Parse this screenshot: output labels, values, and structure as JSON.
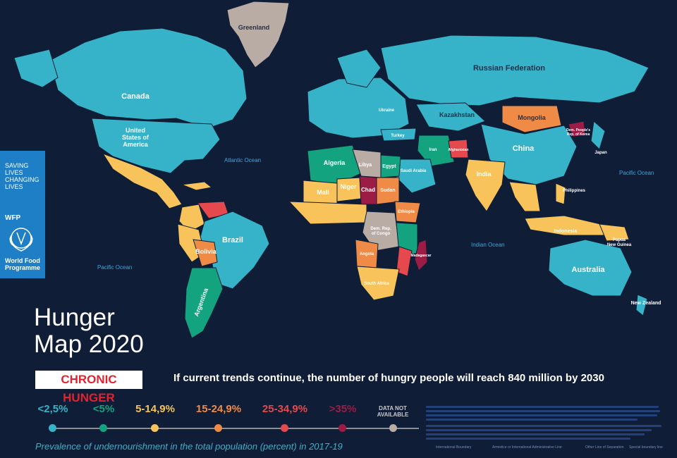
{
  "title": {
    "line1": "Hunger",
    "line2": "Map 2020"
  },
  "badge": "CHRONIC HUNGER",
  "headline": "If current trends continue, the number of hungry people will reach 840 million by 2030",
  "wfp": {
    "slogan": [
      "SAVING",
      "LIVES",
      "CHANGING",
      "LIVES"
    ],
    "acronym": "WFP",
    "program_lines": [
      "World Food",
      "Programme"
    ]
  },
  "legend": {
    "items": [
      {
        "label": "<2,5%",
        "color": "#36b3c8"
      },
      {
        "label": "<5%",
        "color": "#14a37f"
      },
      {
        "label": "5-14,9%",
        "color": "#f7c35a"
      },
      {
        "label": "15-24,9%",
        "color": "#f08b47"
      },
      {
        "label": "25-34,9%",
        "color": "#e5484d"
      },
      {
        "label": ">35%",
        "color": "#9c1c45"
      }
    ],
    "no_data": {
      "line1": "DATA NOT",
      "line2": "AVAILABLE",
      "color": "#b8aca5"
    },
    "caption": "Prevalence of undernourishment in the total population (percent) in 2017-19"
  },
  "boundary_legend": [
    "International Boundary",
    "Armistice or International Administrative Line",
    "Other Line of Separation",
    "Special boundary line"
  ],
  "oceans": {
    "atlantic": "Atlantic Ocean",
    "pacific_east": "Pacific Ocean",
    "pacific_west": "Pacific Ocean",
    "indian": "Indian Ocean"
  },
  "countries": {
    "greenland": "Greenland",
    "russia": "Russian Federation",
    "canada": "Canada",
    "usa": [
      "United",
      "States of",
      "America"
    ],
    "china": "China",
    "mongolia": "Mongolia",
    "kazakhstan": "Kazakhstan",
    "brazil": "Brazil",
    "argentina": "Argentina",
    "bolivia": "Bolivia",
    "australia": "Australia",
    "india": "India",
    "algeria": "Algeria",
    "libya": "Libya",
    "egypt": "Egypt",
    "niger": "Niger",
    "chad": "Chad",
    "mali": "Mali",
    "sudan": "Sudan",
    "ethiopia": "Ethiopia",
    "drc": [
      "Dem. Rep.",
      "of Congo"
    ],
    "angola": "Angola",
    "madagascar": "Madagascar",
    "south_africa": "South Africa",
    "iran": "Iran",
    "afghanistan": "Afghanistan",
    "indonesia": "Indonesia",
    "philippines": "Philippines",
    "japan": "Japan",
    "new_zealand": "New Zealand",
    "papua": [
      "Papua",
      "New Guinea"
    ],
    "saudi_arabia": "Saudi Arabia",
    "turkey": "Turkey",
    "ukraine": "Ukraine",
    "dprk": [
      "Dem. People's",
      "Rep. of Korea"
    ]
  }
}
